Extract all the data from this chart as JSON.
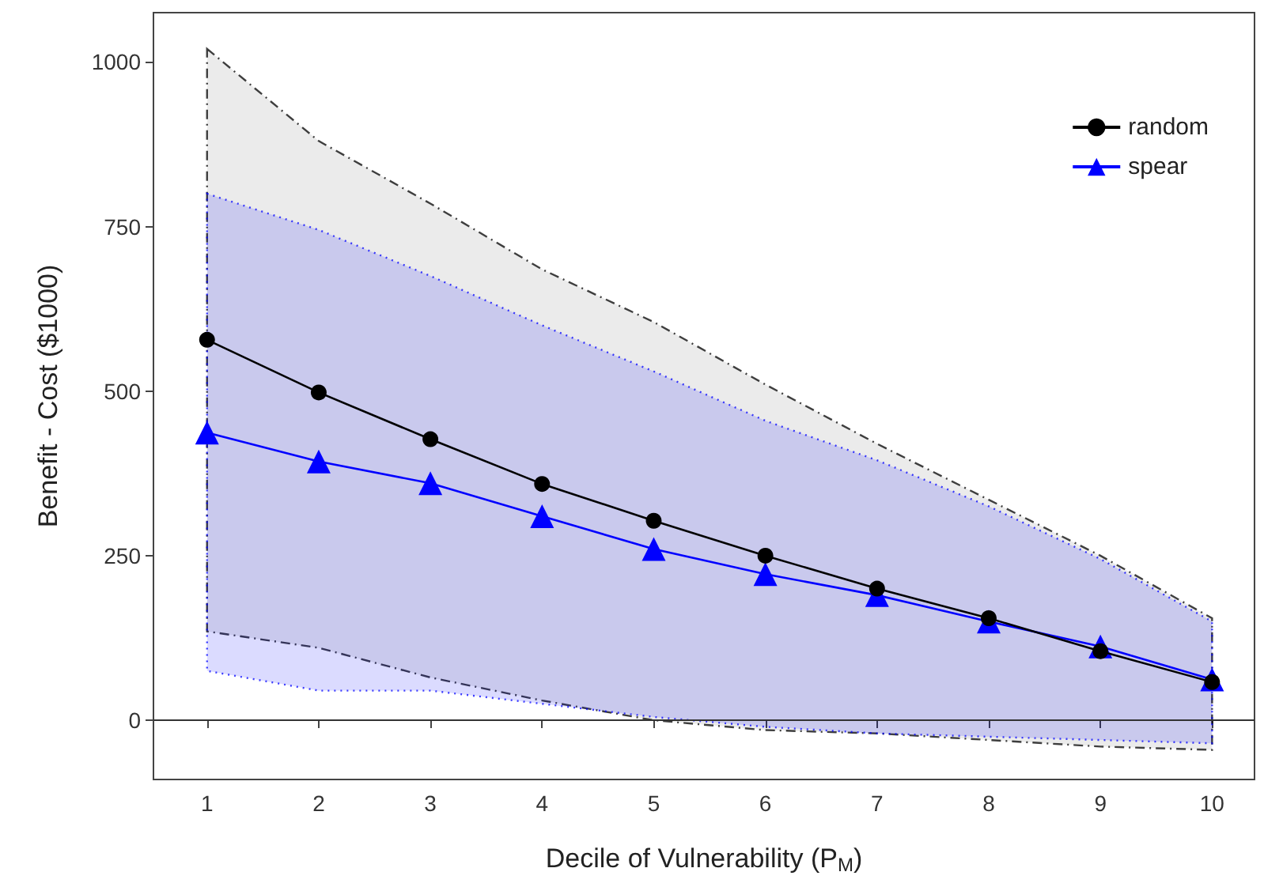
{
  "chart_data": {
    "type": "line",
    "xlabel": "Decile of Vulnerability (P$_{M}$)",
    "ylabel": "Benefit - Cost ($1000)",
    "x": [
      1,
      2,
      3,
      4,
      5,
      6,
      7,
      8,
      9,
      10
    ],
    "xlim": [
      0.52,
      10.38
    ],
    "xticks": [
      1,
      2,
      3,
      4,
      5,
      6,
      7,
      8,
      9,
      10
    ],
    "ylim": [
      -90,
      1075
    ],
    "yticks": [
      0,
      250,
      500,
      750,
      1000
    ],
    "series": [
      {
        "name": "random",
        "color": "#000000",
        "marker": "circle",
        "values": [
          578,
          498,
          427,
          359,
          303,
          250,
          200,
          155,
          105,
          58
        ],
        "lower": [
          135,
          110,
          65,
          30,
          0,
          -15,
          -20,
          -30,
          -40,
          -45
        ],
        "upper": [
          1020,
          880,
          785,
          685,
          605,
          510,
          420,
          335,
          250,
          155
        ]
      },
      {
        "name": "spear",
        "color": "#0000ff",
        "marker": "triangle",
        "values": [
          437,
          393,
          360,
          310,
          260,
          222,
          190,
          150,
          112,
          62
        ],
        "lower": [
          75,
          45,
          45,
          25,
          5,
          -10,
          -20,
          -25,
          -30,
          -35
        ],
        "upper": [
          800,
          745,
          675,
          600,
          530,
          455,
          395,
          325,
          245,
          150
        ]
      }
    ],
    "ref_lines": [
      {
        "axis": "y",
        "value": 0,
        "color": "#333333"
      }
    ],
    "grid": false,
    "legend": "top right",
    "line_style": "solid"
  }
}
